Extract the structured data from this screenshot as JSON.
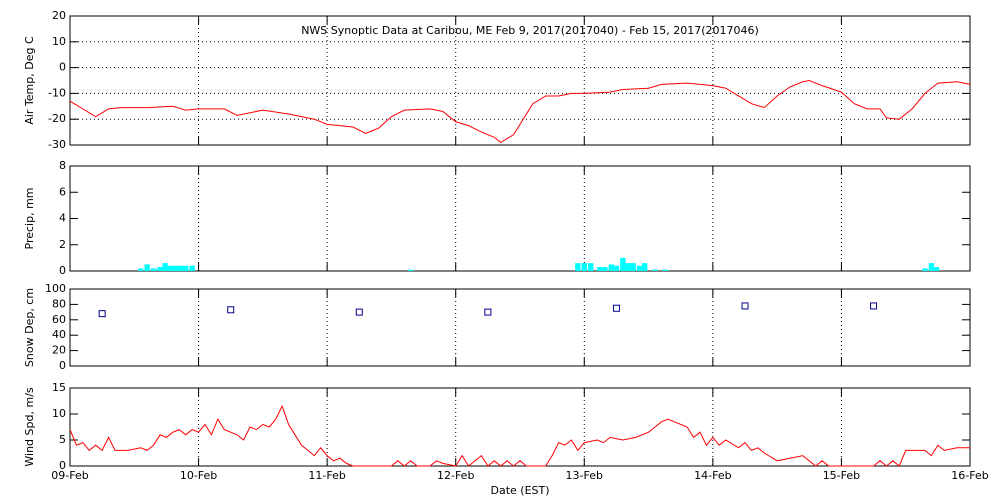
{
  "chart_data": [
    {
      "type": "line",
      "title": "NWS Synoptic Data at Caribou, ME   Feb  9, 2017(2017040) - Feb 15, 2017(2017046)",
      "ylabel": "Air Temp, Deg C",
      "color": "#ff0000",
      "grid": true,
      "xlim": [
        0,
        7
      ],
      "xticks": [
        0,
        1,
        2,
        3,
        4,
        5,
        6,
        7
      ],
      "ylim": [
        -30,
        20
      ],
      "yticks": [
        -30,
        -20,
        -10,
        0,
        10,
        20
      ],
      "x": [
        0,
        0.1,
        0.2,
        0.3,
        0.4,
        0.6,
        0.8,
        0.9,
        1.0,
        1.2,
        1.3,
        1.5,
        1.7,
        1.9,
        2.0,
        2.2,
        2.3,
        2.4,
        2.5,
        2.6,
        2.8,
        2.9,
        3.0,
        3.1,
        3.2,
        3.3,
        3.35,
        3.45,
        3.55,
        3.6,
        3.7,
        3.8,
        3.9,
        4.0,
        4.2,
        4.3,
        4.5,
        4.6,
        4.8,
        4.9,
        5.0,
        5.1,
        5.2,
        5.3,
        5.4,
        5.5,
        5.6,
        5.7,
        5.75,
        5.85,
        6.0,
        6.1,
        6.2,
        6.3,
        6.35,
        6.45,
        6.55,
        6.65,
        6.75,
        6.9,
        7.0
      ],
      "values": [
        -13,
        -16,
        -19,
        -16,
        -15.5,
        -15.5,
        -15,
        -16.5,
        -16,
        -16,
        -18.5,
        -16.5,
        -18,
        -20,
        -22,
        -23,
        -25.5,
        -23.5,
        -19,
        -16.5,
        -16,
        -17,
        -21,
        -22.5,
        -25,
        -27,
        -29,
        -26,
        -18,
        -14,
        -11,
        -11,
        -10,
        -10,
        -9.5,
        -8.5,
        -8,
        -6.5,
        -6,
        -6.5,
        -7,
        -8,
        -11,
        -14,
        -15.5,
        -11,
        -7.5,
        -5.5,
        -5,
        -7,
        -9.5,
        -14,
        -16,
        -16,
        -19.5,
        -20,
        -16,
        -10,
        -6,
        -5.5,
        -6.5
      ]
    },
    {
      "type": "bar",
      "ylabel": "Precip, mm",
      "color": "#00ffff",
      "grid": true,
      "xlim": [
        0,
        7
      ],
      "xticks": [
        0,
        1,
        2,
        3,
        4,
        5,
        6,
        7
      ],
      "ylim": [
        0,
        8
      ],
      "yticks": [
        0,
        2,
        4,
        6,
        8
      ],
      "x": [
        0.55,
        0.6,
        0.65,
        0.7,
        0.74,
        0.78,
        0.82,
        0.86,
        0.9,
        0.95,
        2.65,
        3.95,
        4.0,
        4.05,
        4.12,
        4.16,
        4.21,
        4.25,
        4.3,
        4.34,
        4.38,
        4.43,
        4.47,
        4.55,
        4.63,
        6.65,
        6.7,
        6.74
      ],
      "values": [
        0.2,
        0.5,
        0.2,
        0.3,
        0.6,
        0.4,
        0.4,
        0.4,
        0.4,
        0.4,
        0.1,
        0.6,
        0.6,
        0.6,
        0.3,
        0.3,
        0.5,
        0.4,
        1.0,
        0.6,
        0.6,
        0.4,
        0.6,
        0.1,
        0.1,
        0.2,
        0.6,
        0.3
      ]
    },
    {
      "type": "scatter",
      "ylabel": "Snow Dep, cm",
      "color": "#00008b",
      "grid": true,
      "xlim": [
        0,
        7
      ],
      "xticks": [
        0,
        1,
        2,
        3,
        4,
        5,
        6,
        7
      ],
      "ylim": [
        0,
        100
      ],
      "yticks": [
        0,
        20,
        40,
        60,
        80,
        100
      ],
      "x": [
        0.25,
        1.25,
        2.25,
        3.25,
        4.25,
        5.25,
        6.25
      ],
      "values": [
        68,
        73,
        70,
        70,
        75,
        78,
        78
      ]
    },
    {
      "type": "line",
      "ylabel": "Wind Spd, m/s",
      "xlabel": "Date (EST)",
      "color": "#ff0000",
      "grid": true,
      "xlim": [
        0,
        7
      ],
      "xticks": [
        {
          "value": 0,
          "label": "09-Feb"
        },
        {
          "value": 1,
          "label": "10-Feb"
        },
        {
          "value": 2,
          "label": "11-Feb"
        },
        {
          "value": 3,
          "label": "12-Feb"
        },
        {
          "value": 4,
          "label": "13-Feb"
        },
        {
          "value": 5,
          "label": "14-Feb"
        },
        {
          "value": 6,
          "label": "15-Feb"
        },
        {
          "value": 7,
          "label": "16-Feb"
        }
      ],
      "ylim": [
        0,
        15
      ],
      "yticks": [
        0,
        5,
        10,
        15
      ],
      "x": [
        0,
        0.05,
        0.1,
        0.15,
        0.2,
        0.25,
        0.3,
        0.35,
        0.45,
        0.55,
        0.6,
        0.65,
        0.7,
        0.75,
        0.8,
        0.85,
        0.9,
        0.95,
        1.0,
        1.05,
        1.1,
        1.15,
        1.2,
        1.3,
        1.35,
        1.4,
        1.45,
        1.5,
        1.55,
        1.6,
        1.65,
        1.7,
        1.75,
        1.8,
        1.85,
        1.9,
        1.95,
        2.0,
        2.05,
        2.1,
        2.15,
        2.2,
        2.5,
        2.55,
        2.6,
        2.65,
        2.7,
        2.8,
        2.85,
        2.9,
        3.0,
        3.05,
        3.1,
        3.2,
        3.25,
        3.3,
        3.35,
        3.4,
        3.45,
        3.5,
        3.55,
        3.7,
        3.75,
        3.8,
        3.85,
        3.9,
        3.95,
        4.0,
        4.1,
        4.15,
        4.2,
        4.3,
        4.4,
        4.5,
        4.55,
        4.6,
        4.65,
        4.7,
        4.8,
        4.85,
        4.9,
        4.95,
        5.0,
        5.05,
        5.1,
        5.2,
        5.25,
        5.3,
        5.35,
        5.4,
        5.5,
        5.6,
        5.7,
        5.75,
        5.8,
        5.85,
        5.9,
        6.25,
        6.3,
        6.35,
        6.4,
        6.45,
        6.5,
        6.65,
        6.7,
        6.75,
        6.8,
        6.9,
        7.0
      ],
      "values": [
        7,
        4,
        4.5,
        3,
        4,
        3,
        5.5,
        3,
        3,
        3.5,
        3,
        4,
        6,
        5.5,
        6.5,
        7,
        6,
        7,
        6.5,
        8,
        6,
        9,
        7,
        6,
        5,
        7.5,
        7,
        8,
        7.5,
        9,
        11.5,
        8,
        6,
        4,
        3,
        2,
        3.5,
        2,
        1,
        1.5,
        0.5,
        0,
        0,
        1,
        0,
        1,
        0,
        0,
        1,
        0.5,
        0,
        2,
        0,
        2,
        0,
        1,
        0,
        1,
        0,
        1,
        0,
        0,
        2,
        4.5,
        4,
        5,
        3,
        4.5,
        5,
        4.5,
        5.5,
        5,
        5.5,
        6.5,
        7.5,
        8.5,
        9,
        8.5,
        7.5,
        5.5,
        6.5,
        4,
        5.5,
        4,
        5,
        3.5,
        4.5,
        3,
        3.5,
        2.5,
        1,
        1.5,
        2,
        1,
        0,
        1,
        0,
        0,
        1,
        0,
        1,
        0,
        3,
        3,
        2,
        4,
        3,
        3.5,
        3.5
      ]
    }
  ]
}
